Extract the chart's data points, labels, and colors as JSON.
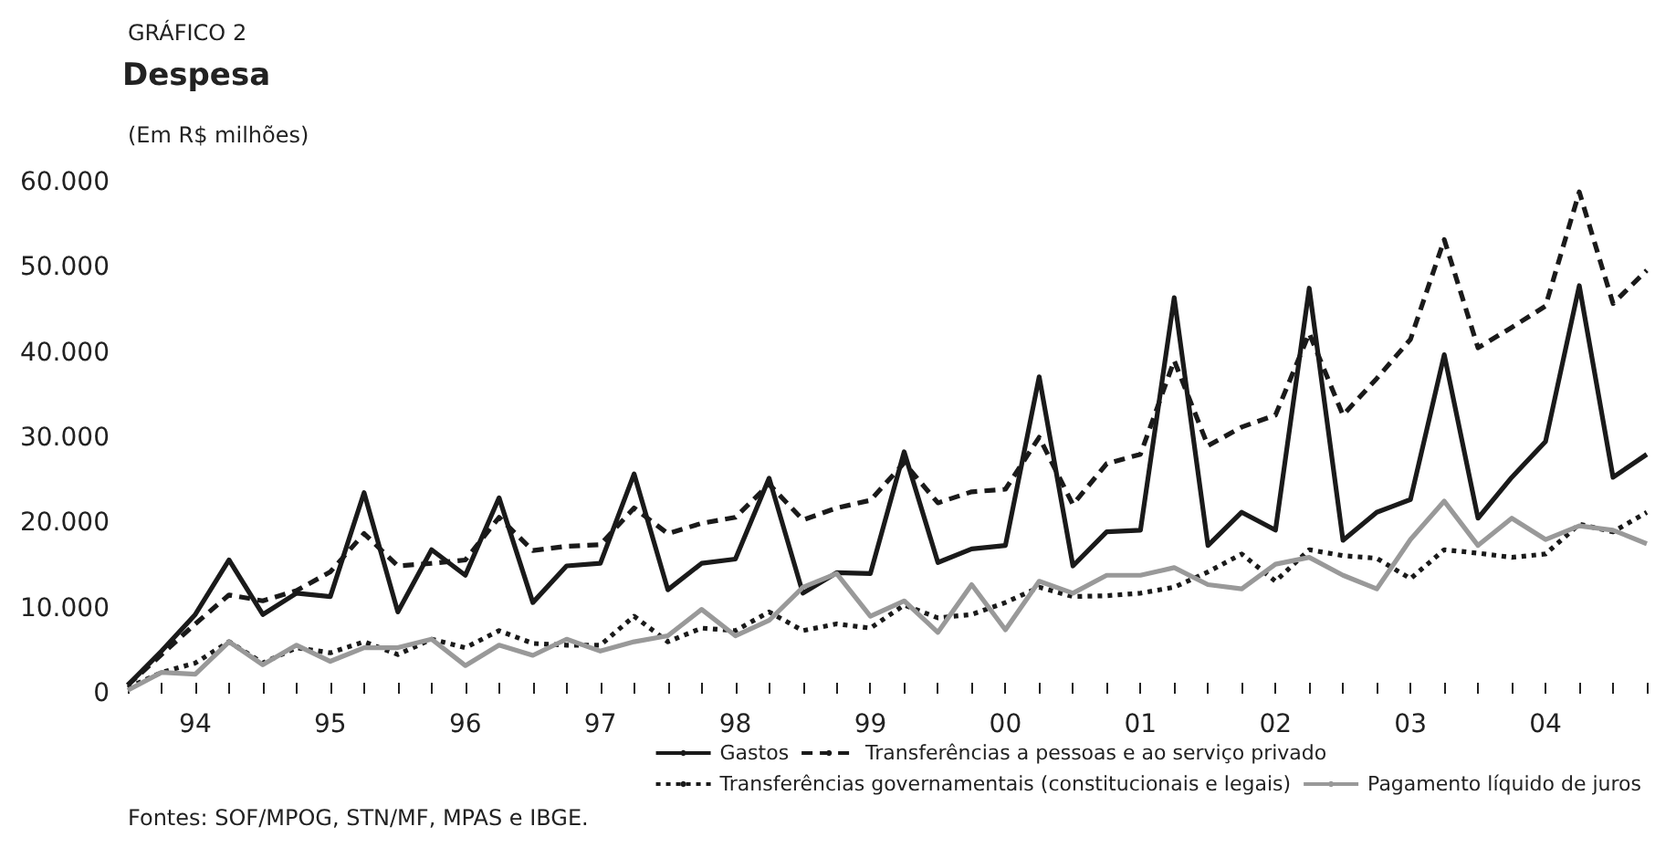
{
  "chart_data": {
    "type": "line",
    "title": "Despesa",
    "ylabel": "(Em R$ milhões)",
    "annotations": [
      "GRÁFICO 2",
      "Fontes: SOF/MPOG, STN/MF, MPAS e IBGE."
    ],
    "categories": [
      null,
      null,
      "94",
      null,
      null,
      null,
      "95",
      null,
      null,
      null,
      "96",
      null,
      null,
      null,
      "97",
      null,
      null,
      null,
      "98",
      null,
      null,
      null,
      "99",
      null,
      null,
      null,
      "00",
      null,
      null,
      null,
      "01",
      null,
      null,
      null,
      "02",
      null,
      null,
      null,
      "03",
      null,
      null,
      null,
      "04",
      null,
      null,
      null
    ],
    "series": [
      {
        "name": "Gastos",
        "color": "#1a1a1a",
        "line_style": "solid",
        "values": [
          1000,
          5000,
          9300,
          15700,
          9300,
          11800,
          11400,
          23600,
          9600,
          16900,
          13900,
          23000,
          10700,
          15000,
          15300,
          25800,
          12200,
          15300,
          15800,
          25300,
          11800,
          14200,
          14100,
          28400,
          15400,
          17000,
          17400,
          37200,
          15000,
          19000,
          19200,
          46500,
          17400,
          21300,
          19200,
          47600,
          18000,
          21300,
          22800,
          39800,
          20600,
          25400,
          29600,
          47900,
          25400,
          28100
        ]
      },
      {
        "name": "Transferências a pessoas e ao serviço privado",
        "color": "#1a1a1a",
        "line_style": "dashed",
        "values": [
          1000,
          4600,
          8200,
          11600,
          10900,
          12100,
          14300,
          18800,
          15000,
          15300,
          15700,
          20700,
          16800,
          17300,
          17500,
          21800,
          18800,
          20000,
          20700,
          24600,
          20400,
          21800,
          22700,
          27100,
          22400,
          23700,
          24000,
          30100,
          22200,
          27000,
          28100,
          39100,
          29100,
          31300,
          32700,
          42300,
          32700,
          37000,
          41600,
          53300,
          40600,
          43000,
          45500,
          58900,
          45800,
          49700
        ]
      },
      {
        "name": "Transferências governamentais (constitucionais e legais)",
        "color": "#1a1a1a",
        "line_style": "dotted",
        "values": [
          700,
          2500,
          3600,
          6100,
          3600,
          5400,
          4800,
          6100,
          4600,
          6400,
          5400,
          7400,
          5900,
          5700,
          5700,
          9100,
          6100,
          7700,
          7400,
          9600,
          7400,
          8200,
          7700,
          10400,
          8900,
          9300,
          10700,
          12500,
          11400,
          11500,
          11800,
          12500,
          14300,
          16400,
          13200,
          16900,
          16200,
          15900,
          13500,
          16900,
          16500,
          16000,
          16400,
          19900,
          19000,
          21300
        ]
      },
      {
        "name": "Pagamento líquido de juros",
        "color": "#999999",
        "line_style": "solid",
        "values": [
          400,
          2500,
          2300,
          6100,
          3400,
          5700,
          3800,
          5400,
          5400,
          6400,
          3300,
          5700,
          4500,
          6400,
          5000,
          6100,
          6800,
          9900,
          6800,
          8600,
          12500,
          14100,
          9100,
          10900,
          7200,
          12800,
          7500,
          13200,
          11800,
          13900,
          13900,
          14800,
          12800,
          12300,
          15200,
          16000,
          13900,
          12300,
          18100,
          22600,
          17400,
          20600,
          18100,
          19700,
          19200,
          17600
        ]
      }
    ],
    "ylim": [
      0,
      60000
    ],
    "yticks": [
      {
        "value": 0,
        "label": "0"
      },
      {
        "value": 10000,
        "label": "10.000"
      },
      {
        "value": 20000,
        "label": "20.000"
      },
      {
        "value": 30000,
        "label": "30.000"
      },
      {
        "value": 40000,
        "label": "40.000"
      },
      {
        "value": 50000,
        "label": "50.000"
      },
      {
        "value": 60000,
        "label": "60.000"
      }
    ],
    "grid": false,
    "legend": "bottom right",
    "marker": "none"
  }
}
